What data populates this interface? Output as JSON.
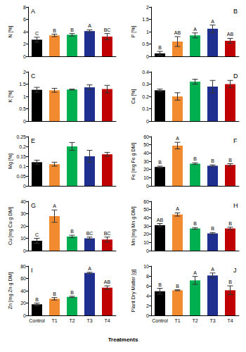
{
  "chart_data": [
    {
      "type": "bar",
      "title": "A",
      "ylabel": "N [%]",
      "categories": [
        "Control",
        "T1",
        "T2",
        "T3",
        "T4"
      ],
      "values": [
        2.7,
        3.4,
        3.5,
        4.1,
        3.2
      ],
      "errors": [
        0.4,
        0.2,
        0.2,
        0.2,
        0.5
      ],
      "letters": [
        "C",
        "B",
        "B",
        "A",
        "BC"
      ],
      "colors": [
        "#000000",
        "#f28a30",
        "#00b050",
        "#1f2f8f",
        "#c00000"
      ],
      "ylim": [
        0,
        8
      ],
      "yticks": [
        0,
        2,
        4,
        6,
        8
      ],
      "grid": false,
      "tick_labels": "y"
    },
    {
      "type": "bar",
      "title": "B",
      "ylabel": "P [%]",
      "categories": [
        "Control",
        "T1",
        "T2",
        "T3",
        "T4"
      ],
      "values": [
        0.12,
        0.6,
        0.85,
        1.12,
        0.63
      ],
      "errors": [
        0.08,
        0.2,
        0.1,
        0.15,
        0.1
      ],
      "letters": [
        "B",
        "AB",
        "A",
        "A",
        "AB"
      ],
      "colors": [
        "#000000",
        "#f28a30",
        "#00b050",
        "#1f2f8f",
        "#c00000"
      ],
      "ylim": [
        0,
        2
      ],
      "yticks": [
        0,
        0.5,
        1,
        1.5,
        2
      ],
      "grid": false,
      "tick_labels": "y"
    },
    {
      "type": "bar",
      "title": "C",
      "ylabel": "K [%]",
      "categories": [
        "Control",
        "T1",
        "T2",
        "T3",
        "T4"
      ],
      "values": [
        1.27,
        1.25,
        1.28,
        1.37,
        1.3
      ],
      "errors": [
        0.1,
        0.08,
        0.02,
        0.1,
        0.15
      ],
      "colors": [
        "#000000",
        "#f28a30",
        "#00b050",
        "#1f2f8f",
        "#c00000"
      ],
      "ylim": [
        0,
        2
      ],
      "yticks": [
        0,
        0.5,
        1,
        1.5,
        2
      ],
      "grid": false,
      "tick_labels": "y"
    },
    {
      "type": "bar",
      "title": "D",
      "ylabel": "Ca [%]",
      "categories": [
        "Control",
        "T1",
        "T2",
        "T3",
        "T4"
      ],
      "values": [
        0.25,
        0.2,
        0.32,
        0.28,
        0.3
      ],
      "errors": [
        0.01,
        0.03,
        0.02,
        0.05,
        0.03
      ],
      "colors": [
        "#000000",
        "#f28a30",
        "#00b050",
        "#1f2f8f",
        "#c00000"
      ],
      "ylim": [
        0,
        0.4
      ],
      "yticks": [
        0,
        0.1,
        0.2,
        0.3,
        0.4
      ],
      "grid": false,
      "tick_labels": "y"
    },
    {
      "type": "bar",
      "title": "E",
      "ylabel": "Mg [%]",
      "categories": [
        "Control",
        "T1",
        "T2",
        "T3",
        "T4"
      ],
      "values": [
        0.12,
        0.11,
        0.2,
        0.15,
        0.16
      ],
      "errors": [
        0.01,
        0.01,
        0.02,
        0.03,
        0.01
      ],
      "colors": [
        "#000000",
        "#f28a30",
        "#00b050",
        "#1f2f8f",
        "#c00000"
      ],
      "ylim": [
        0,
        0.25
      ],
      "yticks": [
        0,
        0.05,
        0.1,
        0.15,
        0.2,
        0.25
      ],
      "grid": false,
      "tick_labels": "y"
    },
    {
      "type": "bar",
      "title": "F",
      "ylabel": "Fe [mg Fe g DM]",
      "categories": [
        "Control",
        "T1",
        "T2",
        "T3",
        "T4"
      ],
      "values": [
        23,
        49,
        27,
        24.5,
        25.5
      ],
      "errors": [
        1,
        4,
        1,
        1,
        1.5
      ],
      "letters": [
        "B",
        "A",
        "B",
        "B",
        "B"
      ],
      "colors": [
        "#000000",
        "#f28a30",
        "#00b050",
        "#1f2f8f",
        "#c00000"
      ],
      "ylim": [
        0,
        60
      ],
      "yticks": [
        0,
        10,
        20,
        30,
        40,
        50,
        60
      ],
      "grid": false,
      "tick_labels": "y"
    },
    {
      "type": "bar",
      "title": "G",
      "ylabel": "Cu [mg Cu g DM]",
      "categories": [
        "Control",
        "T1",
        "T2",
        "T3",
        "T4"
      ],
      "values": [
        8,
        28,
        11.5,
        10,
        9
      ],
      "errors": [
        2,
        5,
        1,
        1,
        2
      ],
      "letters": [
        "C",
        "A",
        "B",
        "BC",
        "BC"
      ],
      "colors": [
        "#000000",
        "#f28a30",
        "#00b050",
        "#1f2f8f",
        "#c00000"
      ],
      "ylim": [
        0,
        40
      ],
      "yticks": [
        0,
        10,
        20,
        30,
        40
      ],
      "grid": false,
      "tick_labels": "y"
    },
    {
      "type": "bar",
      "title": "H",
      "ylabel": "Mn [mg Mn g DM]",
      "categories": [
        "Control",
        "T1",
        "T2",
        "T3",
        "T4"
      ],
      "values": [
        31,
        44,
        27,
        21,
        27
      ],
      "errors": [
        2,
        2,
        1,
        1,
        1.5
      ],
      "letters": [
        "AB",
        "A",
        "B",
        "B",
        "B"
      ],
      "colors": [
        "#000000",
        "#f28a30",
        "#00b050",
        "#1f2f8f",
        "#c00000"
      ],
      "ylim": [
        0,
        60
      ],
      "yticks": [
        0,
        10,
        20,
        30,
        40,
        50,
        60
      ],
      "grid": false,
      "tick_labels": "y"
    },
    {
      "type": "bar",
      "title": "I",
      "ylabel": "Zn [mg Zn g DM]",
      "xlabel": "Treatments",
      "categories": [
        "Control",
        "T1",
        "T2",
        "T3",
        "T4"
      ],
      "values": [
        18,
        27,
        30,
        69,
        45
      ],
      "errors": [
        2,
        2,
        1,
        1,
        3
      ],
      "letters": [
        "B",
        "B",
        "B",
        "A",
        "AB"
      ],
      "colors": [
        "#000000",
        "#f28a30",
        "#00b050",
        "#1f2f8f",
        "#c00000"
      ],
      "ylim": [
        0,
        80
      ],
      "yticks": [
        0,
        20,
        40,
        60,
        80
      ],
      "grid": false
    },
    {
      "type": "bar",
      "title": "J",
      "ylabel": "Plant Dry Matter [g]",
      "categories": [
        "Control",
        "T1",
        "T2",
        "T3",
        "T4"
      ],
      "values": [
        4.9,
        5.1,
        7.1,
        8.1,
        5.1
      ],
      "errors": [
        0.6,
        0.1,
        0.8,
        0.5,
        0.9
      ],
      "letters": [
        "B",
        "B",
        "A",
        "A",
        "B"
      ],
      "colors": [
        "#000000",
        "#f28a30",
        "#00b050",
        "#1f2f8f",
        "#c00000"
      ],
      "ylim": [
        0,
        10
      ],
      "yticks": [
        0,
        2,
        4,
        6,
        8,
        10
      ],
      "grid": false
    }
  ]
}
